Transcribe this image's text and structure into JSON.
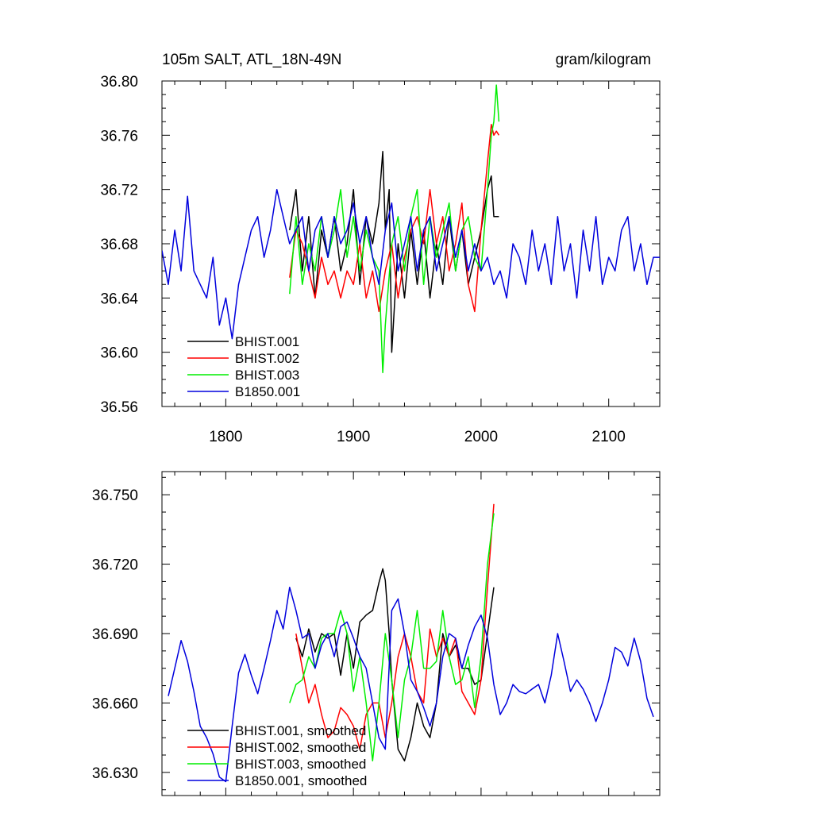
{
  "chart_data": [
    {
      "type": "line",
      "title": "105m SALT, ATL_18N-49N",
      "units": "gram/kilogram",
      "xlim": [
        1750,
        2140
      ],
      "ylim": [
        36.56,
        36.8
      ],
      "xticks": [
        "1800",
        "1900",
        "2000",
        "2100"
      ],
      "xtick_values": [
        1800,
        1900,
        2000,
        2100
      ],
      "yticks": [
        "36.56",
        "36.60",
        "36.64",
        "36.68",
        "36.72",
        "36.76",
        "36.80"
      ],
      "ytick_values": [
        36.56,
        36.6,
        36.64,
        36.68,
        36.72,
        36.76,
        36.8
      ],
      "legend_position": "bottom-left",
      "series": [
        {
          "name": "BHIST.001",
          "color": "#000000",
          "x": [
            1850,
            1855,
            1860,
            1865,
            1870,
            1875,
            1880,
            1885,
            1890,
            1895,
            1900,
            1905,
            1910,
            1915,
            1920,
            1923,
            1925,
            1928,
            1930,
            1935,
            1940,
            1945,
            1950,
            1955,
            1960,
            1965,
            1970,
            1975,
            1980,
            1985,
            1990,
            1995,
            2000,
            2005,
            2008,
            2010,
            2014
          ],
          "y": [
            36.69,
            36.72,
            36.66,
            36.7,
            36.64,
            36.69,
            36.67,
            36.7,
            36.66,
            36.68,
            36.72,
            36.65,
            36.7,
            36.68,
            36.71,
            36.748,
            36.69,
            36.72,
            36.6,
            36.68,
            36.64,
            36.69,
            36.65,
            36.69,
            36.64,
            36.68,
            36.65,
            36.7,
            36.66,
            36.69,
            36.65,
            36.67,
            36.69,
            36.72,
            36.73,
            36.7,
            36.7
          ]
        },
        {
          "name": "BHIST.002",
          "color": "#ff0000",
          "x": [
            1850,
            1855,
            1860,
            1865,
            1870,
            1875,
            1880,
            1885,
            1890,
            1895,
            1900,
            1905,
            1910,
            1915,
            1920,
            1925,
            1930,
            1935,
            1940,
            1945,
            1950,
            1955,
            1960,
            1965,
            1970,
            1975,
            1980,
            1985,
            1990,
            1995,
            2000,
            2005,
            2008,
            2010,
            2012,
            2014
          ],
          "y": [
            36.655,
            36.69,
            36.68,
            36.66,
            36.64,
            36.67,
            36.65,
            36.66,
            36.64,
            36.66,
            36.65,
            36.68,
            36.64,
            36.66,
            36.63,
            36.66,
            36.68,
            36.64,
            36.67,
            36.69,
            36.7,
            36.68,
            36.72,
            36.68,
            36.7,
            36.66,
            36.68,
            36.71,
            36.65,
            36.63,
            36.69,
            36.74,
            36.768,
            36.76,
            36.763,
            36.76
          ]
        },
        {
          "name": "BHIST.003",
          "color": "#00ee00",
          "x": [
            1850,
            1855,
            1860,
            1865,
            1870,
            1875,
            1880,
            1885,
            1890,
            1895,
            1900,
            1905,
            1910,
            1915,
            1920,
            1923,
            1925,
            1930,
            1935,
            1940,
            1945,
            1950,
            1955,
            1960,
            1965,
            1970,
            1975,
            1980,
            1985,
            1990,
            1995,
            2000,
            2005,
            2008,
            2010,
            2012,
            2014
          ],
          "y": [
            36.643,
            36.7,
            36.65,
            36.68,
            36.66,
            36.7,
            36.67,
            36.69,
            36.72,
            36.67,
            36.7,
            36.66,
            36.69,
            36.67,
            36.66,
            36.585,
            36.62,
            36.68,
            36.7,
            36.66,
            36.7,
            36.72,
            36.65,
            36.7,
            36.67,
            36.69,
            36.71,
            36.66,
            36.69,
            36.7,
            36.67,
            36.66,
            36.72,
            36.76,
            36.77,
            36.797,
            36.77
          ]
        },
        {
          "name": "B1850.001",
          "color": "#0000dd",
          "x": [
            1750,
            1755,
            1760,
            1765,
            1770,
            1775,
            1780,
            1785,
            1790,
            1795,
            1800,
            1805,
            1810,
            1815,
            1820,
            1825,
            1830,
            1835,
            1840,
            1845,
            1850,
            1855,
            1860,
            1865,
            1870,
            1875,
            1880,
            1885,
            1890,
            1895,
            1900,
            1905,
            1910,
            1915,
            1920,
            1925,
            1930,
            1935,
            1940,
            1945,
            1950,
            1955,
            1960,
            1965,
            1970,
            1975,
            1980,
            1985,
            1990,
            1995,
            2000,
            2005,
            2010,
            2015,
            2020,
            2025,
            2030,
            2035,
            2040,
            2045,
            2050,
            2055,
            2060,
            2065,
            2070,
            2075,
            2080,
            2085,
            2090,
            2095,
            2100,
            2105,
            2110,
            2115,
            2120,
            2125,
            2130,
            2135,
            2140
          ],
          "y": [
            36.675,
            36.65,
            36.69,
            36.66,
            36.715,
            36.66,
            36.65,
            36.64,
            36.67,
            36.62,
            36.64,
            36.61,
            36.65,
            36.67,
            36.69,
            36.7,
            36.67,
            36.69,
            36.72,
            36.7,
            36.68,
            36.69,
            36.7,
            36.66,
            36.69,
            36.7,
            36.67,
            36.7,
            36.68,
            36.69,
            36.71,
            36.68,
            36.7,
            36.67,
            36.65,
            36.69,
            36.71,
            36.66,
            36.68,
            36.7,
            36.66,
            36.69,
            36.7,
            36.66,
            36.68,
            36.7,
            36.67,
            36.69,
            36.66,
            36.68,
            36.66,
            36.67,
            36.65,
            36.66,
            36.64,
            36.68,
            36.67,
            36.65,
            36.69,
            36.66,
            36.68,
            36.65,
            36.7,
            36.66,
            36.68,
            36.64,
            36.69,
            36.66,
            36.7,
            36.65,
            36.67,
            36.66,
            36.69,
            36.7,
            36.66,
            36.68,
            36.65,
            36.67,
            36.67
          ]
        }
      ]
    },
    {
      "type": "line",
      "title": "",
      "xlim": [
        1750,
        2140
      ],
      "ylim": [
        36.62,
        36.76
      ],
      "xtick_values": [
        1800,
        1900,
        2000,
        2100
      ],
      "yticks": [
        "36.630",
        "36.660",
        "36.690",
        "36.720",
        "36.750"
      ],
      "ytick_values": [
        36.63,
        36.66,
        36.69,
        36.72,
        36.75
      ],
      "legend_position": "bottom-left",
      "series": [
        {
          "name": "BHIST.001, smoothed",
          "color": "#000000",
          "x": [
            1855,
            1860,
            1865,
            1870,
            1875,
            1880,
            1885,
            1890,
            1895,
            1900,
            1905,
            1910,
            1915,
            1920,
            1923,
            1925,
            1928,
            1930,
            1935,
            1940,
            1945,
            1950,
            1955,
            1960,
            1965,
            1970,
            1975,
            1980,
            1985,
            1990,
            1995,
            2000,
            2005,
            2010
          ],
          "y": [
            36.688,
            36.68,
            36.692,
            36.682,
            36.69,
            36.688,
            36.69,
            36.672,
            36.69,
            36.675,
            36.695,
            36.698,
            36.7,
            36.712,
            36.718,
            36.713,
            36.69,
            36.67,
            36.64,
            36.635,
            36.645,
            36.66,
            36.65,
            36.645,
            36.66,
            36.69,
            36.68,
            36.685,
            36.675,
            36.675,
            36.668,
            36.67,
            36.69,
            36.71
          ]
        },
        {
          "name": "BHIST.002, smoothed",
          "color": "#ff0000",
          "x": [
            1855,
            1860,
            1865,
            1870,
            1875,
            1880,
            1885,
            1890,
            1895,
            1900,
            1905,
            1910,
            1915,
            1920,
            1925,
            1930,
            1935,
            1940,
            1945,
            1950,
            1955,
            1960,
            1965,
            1970,
            1975,
            1980,
            1985,
            1990,
            1995,
            2000,
            2005,
            2010
          ],
          "y": [
            36.69,
            36.675,
            36.66,
            36.668,
            36.655,
            36.645,
            36.648,
            36.658,
            36.655,
            36.65,
            36.64,
            36.655,
            36.66,
            36.66,
            36.645,
            36.66,
            36.68,
            36.69,
            36.68,
            36.665,
            36.66,
            36.692,
            36.68,
            36.688,
            36.68,
            36.688,
            36.665,
            36.66,
            36.655,
            36.67,
            36.71,
            36.746
          ]
        },
        {
          "name": "BHIST.003, smoothed",
          "color": "#00ee00",
          "x": [
            1850,
            1855,
            1860,
            1865,
            1870,
            1875,
            1880,
            1885,
            1890,
            1895,
            1900,
            1905,
            1910,
            1915,
            1920,
            1925,
            1930,
            1935,
            1940,
            1945,
            1950,
            1955,
            1960,
            1965,
            1970,
            1975,
            1980,
            1985,
            1990,
            1995,
            2000,
            2005,
            2010
          ],
          "y": [
            36.66,
            36.668,
            36.67,
            36.68,
            36.675,
            36.688,
            36.69,
            36.69,
            36.7,
            36.69,
            36.665,
            36.68,
            36.66,
            36.635,
            36.66,
            36.69,
            36.67,
            36.645,
            36.67,
            36.68,
            36.7,
            36.675,
            36.675,
            36.678,
            36.7,
            36.68,
            36.668,
            36.67,
            36.68,
            36.658,
            36.68,
            36.72,
            36.742
          ]
        },
        {
          "name": "B1850.001, smoothed",
          "color": "#0000dd",
          "x": [
            1755,
            1760,
            1765,
            1770,
            1775,
            1780,
            1785,
            1790,
            1795,
            1800,
            1805,
            1810,
            1815,
            1820,
            1825,
            1830,
            1835,
            1840,
            1845,
            1850,
            1855,
            1860,
            1865,
            1870,
            1875,
            1880,
            1885,
            1890,
            1895,
            1900,
            1905,
            1910,
            1915,
            1920,
            1925,
            1930,
            1935,
            1940,
            1945,
            1950,
            1955,
            1960,
            1965,
            1970,
            1975,
            1980,
            1985,
            1990,
            1995,
            2000,
            2005,
            2010,
            2015,
            2020,
            2025,
            2030,
            2035,
            2040,
            2045,
            2050,
            2055,
            2060,
            2065,
            2070,
            2075,
            2080,
            2085,
            2090,
            2095,
            2100,
            2105,
            2110,
            2115,
            2120,
            2125,
            2130,
            2135
          ],
          "y": [
            36.663,
            36.675,
            36.687,
            36.678,
            36.665,
            36.65,
            36.645,
            36.638,
            36.628,
            36.626,
            36.65,
            36.673,
            36.681,
            36.672,
            36.664,
            36.675,
            36.687,
            36.7,
            36.692,
            36.71,
            36.7,
            36.688,
            36.69,
            36.675,
            36.685,
            36.69,
            36.68,
            36.693,
            36.695,
            36.688,
            36.68,
            36.675,
            36.66,
            36.645,
            36.64,
            36.7,
            36.705,
            36.69,
            36.67,
            36.665,
            36.658,
            36.65,
            36.66,
            36.68,
            36.69,
            36.688,
            36.675,
            36.685,
            36.693,
            36.698,
            36.688,
            36.668,
            36.655,
            36.66,
            36.668,
            36.665,
            36.664,
            36.666,
            36.668,
            36.66,
            36.672,
            36.69,
            36.678,
            36.665,
            36.67,
            36.666,
            36.66,
            36.652,
            36.66,
            36.67,
            36.684,
            36.682,
            36.676,
            36.688,
            36.678,
            36.662,
            36.654
          ]
        }
      ]
    }
  ]
}
